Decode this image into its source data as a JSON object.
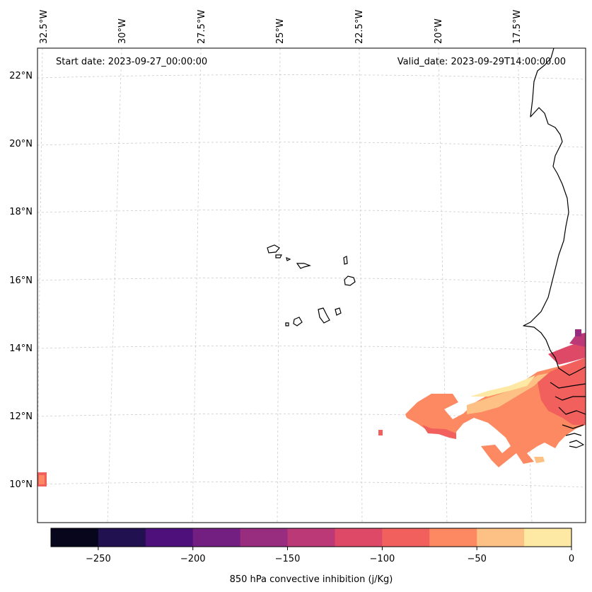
{
  "map": {
    "start_date_label": "Start date: 2023-09-27_00:00:00",
    "valid_date_label": "Valid_date: 2023-09-29T14:00:00.00",
    "lon_labels": [
      "32.5°W",
      "30°W",
      "27.5°W",
      "25°W",
      "22.5°W",
      "20°W",
      "17.5°W"
    ],
    "lat_labels": [
      "22°N",
      "20°N",
      "18°N",
      "16°N",
      "14°N",
      "12°N",
      "10°N"
    ]
  },
  "colorbar": {
    "label": "850 hPa convective inhibition (j/Kg)",
    "ticks": [
      "−250",
      "−200",
      "−150",
      "−100",
      "−50",
      "0"
    ],
    "colors": [
      "#07061c",
      "#221150",
      "#4e117b",
      "#721f81",
      "#982d80",
      "#bc3978",
      "#de4968",
      "#f1605d",
      "#fc8961",
      "#fec185",
      "#fde9a3"
    ],
    "levels": [
      -275,
      -250,
      -225,
      -200,
      -175,
      -150,
      -125,
      -100,
      -75,
      -50,
      -25,
      0
    ]
  }
}
